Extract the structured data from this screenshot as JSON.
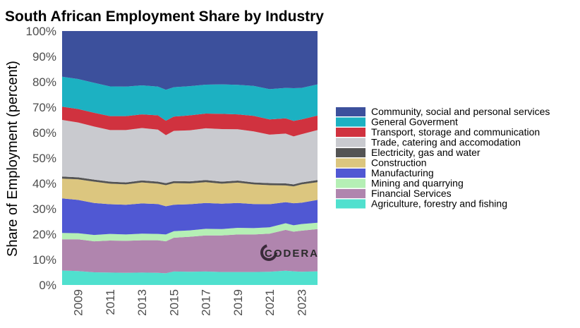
{
  "chart_data": {
    "type": "area",
    "stacked": true,
    "title": "South African Employment Share by Industry",
    "ylabel": "Share of Employment (percent)",
    "xlabel": "",
    "xlim": [
      2008.0,
      2024.0
    ],
    "ylim": [
      0,
      100
    ],
    "x_ticks": [
      "2009",
      "2011",
      "2013",
      "2015",
      "2017",
      "2019",
      "2021",
      "2023"
    ],
    "x_tick_values": [
      2009,
      2011,
      2013,
      2015,
      2017,
      2019,
      2021,
      2023
    ],
    "y_ticks": [
      "0%",
      "10%",
      "20%",
      "30%",
      "40%",
      "50%",
      "60%",
      "70%",
      "80%",
      "90%",
      "100%"
    ],
    "y_tick_values": [
      0,
      10,
      20,
      30,
      40,
      50,
      60,
      70,
      80,
      90,
      100
    ],
    "grid": false,
    "legend_position": "right",
    "x": [
      2008.0,
      2009.0,
      2010.0,
      2011.0,
      2012.0,
      2013.0,
      2014.0,
      2014.5,
      2015.0,
      2016.0,
      2017.0,
      2018.0,
      2019.0,
      2020.0,
      2021.0,
      2022.0,
      2022.5,
      2023.0,
      2024.0
    ],
    "series": [
      {
        "name": "Agriculture, forestry and fishing",
        "color": "#50E0CE",
        "values": [
          5.7,
          5.5,
          5.0,
          4.9,
          4.8,
          4.9,
          4.8,
          4.6,
          5.3,
          5.2,
          5.3,
          5.1,
          5.1,
          5.1,
          5.2,
          5.6,
          5.4,
          5.2,
          5.4
        ]
      },
      {
        "name": "Financial Services",
        "color": "#B085AE",
        "values": [
          12.3,
          12.5,
          12.2,
          12.6,
          12.6,
          12.7,
          12.8,
          12.6,
          13.3,
          13.8,
          14.2,
          14.4,
          14.8,
          14.8,
          15.0,
          16.1,
          15.6,
          16.2,
          16.6
        ]
      },
      {
        "name": "Mining and quarrying",
        "color": "#B5EFB5",
        "values": [
          2.5,
          2.4,
          2.5,
          2.6,
          2.5,
          2.6,
          2.5,
          2.7,
          2.6,
          2.5,
          2.6,
          2.5,
          2.6,
          2.5,
          2.5,
          2.6,
          2.5,
          2.6,
          2.5
        ]
      },
      {
        "name": "Manufacturing",
        "color": "#5058D3",
        "values": [
          13.6,
          13.1,
          12.6,
          11.7,
          11.7,
          11.9,
          11.8,
          11.1,
          10.4,
          10.3,
          10.2,
          10.0,
          9.8,
          9.5,
          9.1,
          8.3,
          8.7,
          8.4,
          9.0
        ]
      },
      {
        "name": "Construction",
        "color": "#DCC67F",
        "values": [
          7.8,
          8.1,
          8.4,
          8.1,
          8.0,
          8.3,
          8.0,
          8.3,
          8.5,
          8.2,
          8.2,
          7.9,
          8.0,
          7.7,
          7.5,
          6.6,
          6.6,
          7.2,
          7.0
        ]
      },
      {
        "name": "Electricity, gas and water",
        "color": "#545454",
        "values": [
          0.8,
          0.8,
          0.8,
          0.8,
          0.8,
          0.8,
          0.8,
          0.8,
          0.8,
          0.8,
          0.8,
          0.8,
          0.8,
          0.8,
          0.8,
          0.8,
          0.8,
          0.8,
          0.8
        ]
      },
      {
        "name": "Trade, catering and accomodation",
        "color": "#C9CACF",
        "values": [
          22.3,
          21.6,
          20.9,
          20.3,
          20.6,
          20.6,
          20.5,
          18.9,
          19.8,
          20.1,
          20.4,
          20.7,
          20.2,
          20.1,
          19.1,
          19.6,
          18.9,
          19.0,
          19.7
        ]
      },
      {
        "name": "Transport, storage and communication",
        "color": "#D0323F",
        "values": [
          5.2,
          5.3,
          5.4,
          5.5,
          5.5,
          5.4,
          5.6,
          5.7,
          5.6,
          5.9,
          5.8,
          6.0,
          5.9,
          6.1,
          6.0,
          6.0,
          6.1,
          5.8,
          5.7
        ]
      },
      {
        "name": "General Goverment",
        "color": "#1CB1C2",
        "values": [
          11.8,
          11.8,
          11.8,
          11.7,
          11.6,
          11.4,
          11.3,
          12.2,
          11.6,
          11.5,
          11.4,
          11.6,
          11.6,
          11.8,
          11.9,
          12.0,
          12.9,
          12.4,
          12.3
        ]
      },
      {
        "name": "Community, social and personal services",
        "color": "#3C509C",
        "values": [
          18.0,
          18.9,
          20.4,
          21.8,
          21.9,
          21.4,
          21.9,
          23.1,
          22.1,
          21.7,
          21.1,
          21.0,
          21.2,
          21.6,
          22.9,
          22.4,
          22.5,
          22.4,
          21.0
        ]
      }
    ],
    "legend_order": [
      "Community, social and personal services",
      "General Goverment",
      "Transport, storage and communication",
      "Trade, catering and accomodation",
      "Electricity, gas and water",
      "Construction",
      "Manufacturing",
      "Mining and quarrying",
      "Financial Services",
      "Agriculture, forestry and fishing"
    ]
  },
  "watermark": {
    "text": "CODERA"
  }
}
